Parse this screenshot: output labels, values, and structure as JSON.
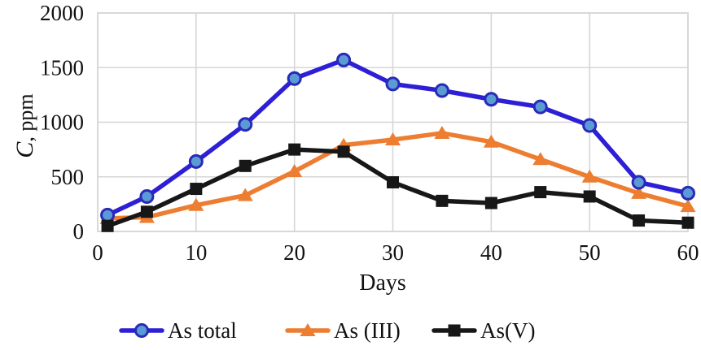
{
  "chart_data": {
    "type": "line",
    "title": "",
    "xlabel": "Days",
    "ylabel": "C, ppm",
    "ylabel_italic": "C",
    "ylabel_rest": ", ppm",
    "x": [
      1,
      5,
      10,
      15,
      20,
      25,
      30,
      35,
      40,
      45,
      50,
      55,
      60
    ],
    "series": [
      {
        "name": "As total",
        "marker": "circle",
        "line_color": "#2c1fd6",
        "marker_fill": "#5b9bd5",
        "marker_stroke": "#2a2ab8",
        "values": [
          150,
          320,
          640,
          980,
          1400,
          1570,
          1350,
          1290,
          1210,
          1140,
          970,
          450,
          350
        ]
      },
      {
        "name": "As (III)",
        "marker": "triangle",
        "line_color": "#ed7d31",
        "marker_fill": "#ed7d31",
        "marker_stroke": "#ed7d31",
        "values": [
          120,
          130,
          240,
          330,
          550,
          790,
          840,
          900,
          820,
          660,
          500,
          350,
          230
        ]
      },
      {
        "name": "As(V)",
        "marker": "square",
        "line_color": "#171717",
        "marker_fill": "#171717",
        "marker_stroke": "#171717",
        "values": [
          50,
          180,
          390,
          600,
          750,
          730,
          450,
          280,
          260,
          360,
          320,
          100,
          80
        ]
      }
    ],
    "xlim": [
      0,
      60
    ],
    "ylim": [
      0,
      2000
    ],
    "x_ticks": [
      0,
      10,
      20,
      30,
      40,
      50,
      60
    ],
    "y_ticks": [
      0,
      500,
      1000,
      1500,
      2000
    ],
    "grid": true,
    "grid_color": "#d6d6d6",
    "text_color": "#111111",
    "legend_position": "bottom"
  }
}
